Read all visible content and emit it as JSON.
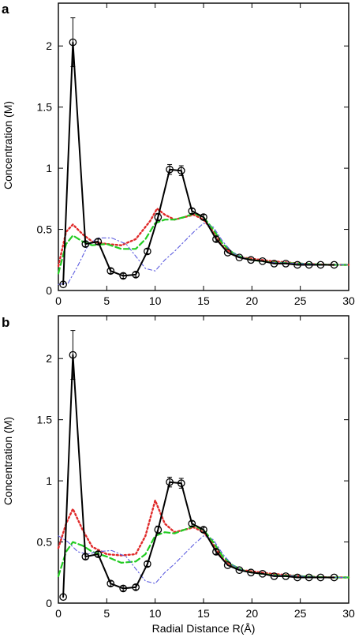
{
  "figure": {
    "xlabel": "Radial Distance R(Å)",
    "ylabel": "Concentration (M)"
  },
  "chart_data": [
    {
      "type": "line",
      "panel_label": "a",
      "xlabel": "Radial Distance R(Å)",
      "ylabel": "Concentration (M)",
      "xlim": [
        0,
        30
      ],
      "ylim": [
        0,
        2.35
      ],
      "xticks": [
        "0",
        "5",
        "10",
        "15",
        "20",
        "25",
        "30"
      ],
      "yticks": [
        "0",
        "0.5",
        "1",
        "1.5",
        "2"
      ],
      "grid": false,
      "series": [
        {
          "color": "#000000",
          "style": "solid",
          "marker": "open-circle",
          "x": [
            0.5,
            1.5,
            2.8,
            4.1,
            5.4,
            6.7,
            8.0,
            9.2,
            10.3,
            11.5,
            12.7,
            13.8,
            15.0,
            16.3,
            17.5,
            18.7,
            19.9,
            21.1,
            22.3,
            23.5,
            24.7,
            25.9,
            27.1,
            28.5
          ],
          "y": [
            0.05,
            2.03,
            0.38,
            0.4,
            0.16,
            0.12,
            0.13,
            0.32,
            0.6,
            0.99,
            0.98,
            0.65,
            0.6,
            0.42,
            0.31,
            0.27,
            0.25,
            0.24,
            0.22,
            0.22,
            0.21,
            0.21,
            0.21,
            0.21
          ],
          "yerr": [
            0,
            0.2,
            0.02,
            0.02,
            0.02,
            0.02,
            0.02,
            0.02,
            0.03,
            0.04,
            0.04,
            0.02,
            0.02,
            0.02,
            0.01,
            0.01,
            0.01,
            0.01,
            0.01,
            0.01,
            0.01,
            0.01,
            0.01,
            0.01
          ]
        },
        {
          "color": "#e02a2a",
          "style": "dotted",
          "x": [
            0,
            0.8,
            1.5,
            2.5,
            3.5,
            5.0,
            6.5,
            8.0,
            9.5,
            10.2,
            11.0,
            12.0,
            13.0,
            14.0,
            15.0,
            16.0,
            17.0,
            18.0,
            19.0,
            20.0,
            22.0,
            25.0,
            28.0,
            30.0
          ],
          "y": [
            0.2,
            0.48,
            0.54,
            0.46,
            0.4,
            0.38,
            0.37,
            0.42,
            0.57,
            0.67,
            0.62,
            0.58,
            0.6,
            0.62,
            0.58,
            0.48,
            0.36,
            0.3,
            0.27,
            0.26,
            0.24,
            0.22,
            0.21,
            0.21
          ]
        },
        {
          "color": "#22cc22",
          "style": "dashed",
          "x": [
            0,
            0.8,
            1.5,
            2.5,
            3.5,
            5.0,
            6.5,
            8.0,
            9.0,
            10.0,
            11.0,
            12.0,
            13.0,
            14.0,
            15.0,
            16.0,
            17.0,
            18.0,
            19.0,
            20.0,
            22.0,
            25.0,
            28.0,
            30.0
          ],
          "y": [
            0.14,
            0.38,
            0.45,
            0.4,
            0.37,
            0.38,
            0.34,
            0.34,
            0.42,
            0.55,
            0.58,
            0.58,
            0.6,
            0.63,
            0.6,
            0.5,
            0.38,
            0.31,
            0.27,
            0.25,
            0.23,
            0.22,
            0.21,
            0.21
          ]
        },
        {
          "color": "#5f5fe0",
          "style": "dashdot",
          "x": [
            0,
            1.0,
            2.0,
            3.0,
            4.0,
            5.5,
            7.0,
            8.0,
            9.0,
            10.0,
            11.0,
            12.0,
            13.0,
            14.0,
            15.0,
            16.0,
            17.0,
            18.0,
            19.0,
            20.0,
            22.0,
            25.0,
            28.0,
            30.0
          ],
          "y": [
            0.05,
            0.06,
            0.2,
            0.36,
            0.43,
            0.43,
            0.38,
            0.28,
            0.18,
            0.16,
            0.25,
            0.32,
            0.4,
            0.48,
            0.55,
            0.52,
            0.4,
            0.31,
            0.27,
            0.25,
            0.23,
            0.22,
            0.21,
            0.21
          ]
        }
      ]
    },
    {
      "type": "line",
      "panel_label": "b",
      "xlabel": "Radial Distance R(Å)",
      "ylabel": "Concentration (M)",
      "xlim": [
        0,
        30
      ],
      "ylim": [
        0,
        2.35
      ],
      "xticks": [
        "0",
        "5",
        "10",
        "15",
        "20",
        "25",
        "30"
      ],
      "yticks": [
        "0",
        "0.5",
        "1",
        "1.5",
        "2"
      ],
      "grid": false,
      "series": [
        {
          "color": "#000000",
          "style": "solid",
          "marker": "open-circle",
          "x": [
            0.5,
            1.5,
            2.8,
            4.1,
            5.4,
            6.7,
            8.0,
            9.2,
            10.3,
            11.5,
            12.7,
            13.8,
            15.0,
            16.3,
            17.5,
            18.7,
            19.9,
            21.1,
            22.3,
            23.5,
            24.7,
            25.9,
            27.1,
            28.5
          ],
          "y": [
            0.05,
            2.03,
            0.38,
            0.4,
            0.16,
            0.12,
            0.13,
            0.32,
            0.6,
            0.99,
            0.98,
            0.65,
            0.6,
            0.42,
            0.31,
            0.27,
            0.25,
            0.24,
            0.22,
            0.22,
            0.21,
            0.21,
            0.21,
            0.21
          ],
          "yerr": [
            0,
            0.2,
            0.02,
            0.02,
            0.02,
            0.02,
            0.02,
            0.02,
            0.03,
            0.04,
            0.04,
            0.02,
            0.02,
            0.02,
            0.01,
            0.01,
            0.01,
            0.01,
            0.01,
            0.01,
            0.01,
            0.01,
            0.01,
            0.01
          ]
        },
        {
          "color": "#e02a2a",
          "style": "dotted",
          "x": [
            0,
            0.8,
            1.5,
            2.5,
            3.5,
            5.0,
            6.5,
            8.0,
            9.0,
            10.0,
            11.0,
            12.0,
            13.0,
            14.0,
            15.0,
            16.0,
            17.0,
            18.0,
            19.0,
            20.0,
            22.0,
            25.0,
            28.0,
            30.0
          ],
          "y": [
            0.45,
            0.65,
            0.77,
            0.6,
            0.46,
            0.4,
            0.39,
            0.4,
            0.55,
            0.84,
            0.65,
            0.58,
            0.6,
            0.62,
            0.58,
            0.48,
            0.36,
            0.3,
            0.27,
            0.26,
            0.24,
            0.22,
            0.21,
            0.21
          ]
        },
        {
          "color": "#22cc22",
          "style": "dashed",
          "x": [
            0,
            0.8,
            1.5,
            2.5,
            3.5,
            5.0,
            6.5,
            8.0,
            9.0,
            10.0,
            11.0,
            12.0,
            13.0,
            14.0,
            15.0,
            16.0,
            17.0,
            18.0,
            19.0,
            20.0,
            22.0,
            25.0,
            28.0,
            30.0
          ],
          "y": [
            0.22,
            0.42,
            0.5,
            0.47,
            0.42,
            0.38,
            0.33,
            0.34,
            0.4,
            0.55,
            0.58,
            0.57,
            0.6,
            0.63,
            0.6,
            0.5,
            0.38,
            0.31,
            0.27,
            0.25,
            0.23,
            0.22,
            0.21,
            0.21
          ]
        },
        {
          "color": "#5f5fe0",
          "style": "dashdot",
          "x": [
            0,
            1.0,
            2.0,
            3.0,
            4.0,
            5.5,
            7.0,
            8.0,
            9.0,
            10.0,
            11.0,
            12.0,
            13.0,
            14.0,
            15.0,
            16.0,
            17.0,
            18.0,
            19.0,
            20.0,
            22.0,
            25.0,
            28.0,
            30.0
          ],
          "y": [
            0.55,
            0.5,
            0.42,
            0.4,
            0.42,
            0.43,
            0.38,
            0.28,
            0.18,
            0.16,
            0.25,
            0.32,
            0.4,
            0.48,
            0.55,
            0.52,
            0.4,
            0.31,
            0.27,
            0.25,
            0.23,
            0.22,
            0.21,
            0.21
          ]
        }
      ]
    }
  ]
}
